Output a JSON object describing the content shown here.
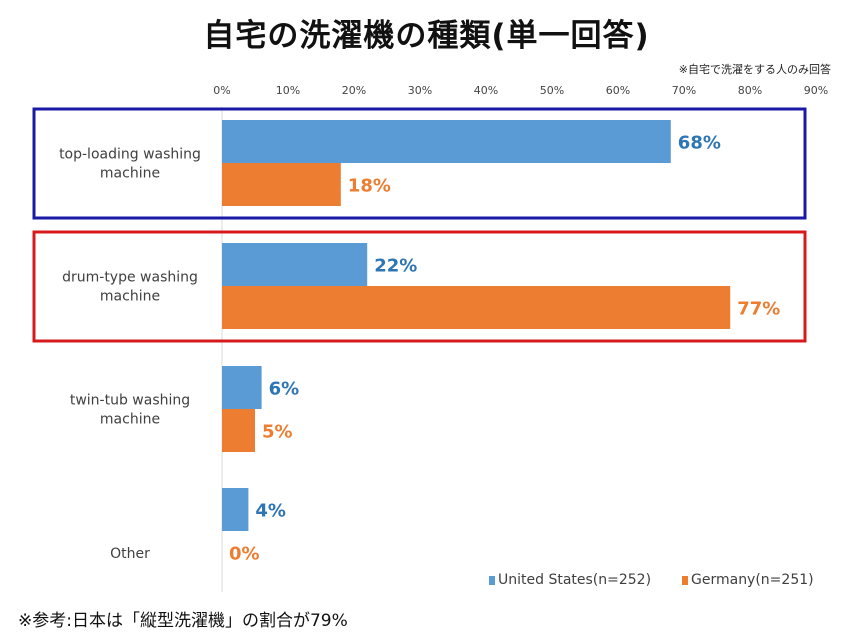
{
  "page": {
    "title": "自宅の洗濯機の種類(単一回答)",
    "subnote": "※自宅で洗濯をする人のみ回答",
    "footnote": "※参考:日本は「縦型洗濯機」の割合が79%"
  },
  "colors": {
    "us": "#5b9bd5",
    "germany": "#ed7d31",
    "us_label": "#2e75b6",
    "germany_label": "#ed7d31",
    "highlight_top": "#1a1aa6",
    "highlight_drum": "#d7191c"
  },
  "chart_data": {
    "type": "bar",
    "orientation": "horizontal",
    "xlim": [
      0,
      90
    ],
    "ticks": [
      0,
      10,
      20,
      30,
      40,
      50,
      60,
      70,
      80,
      90
    ],
    "tick_labels": [
      "0%",
      "10%",
      "20%",
      "30%",
      "40%",
      "50%",
      "60%",
      "70%",
      "80%",
      "90%"
    ],
    "categories": [
      [
        "top-loading washing",
        "machine"
      ],
      [
        "drum-type washing",
        "machine"
      ],
      [
        "twin-tub washing",
        "machine"
      ],
      [
        "Other"
      ]
    ],
    "series": [
      {
        "key": "us",
        "name": "United States(n=252)",
        "values": [
          68,
          22,
          6,
          4
        ],
        "labels": [
          "68%",
          "22%",
          "6%",
          "4%"
        ]
      },
      {
        "key": "germany",
        "name": "Germany(n=251)",
        "values": [
          18,
          77,
          5,
          0
        ],
        "labels": [
          "18%",
          "77%",
          "5%",
          "0%"
        ]
      }
    ],
    "highlights": [
      {
        "category": 0,
        "color_key": "highlight_top"
      },
      {
        "category": 1,
        "color_key": "highlight_drum"
      }
    ],
    "legend": "bottom-right"
  }
}
